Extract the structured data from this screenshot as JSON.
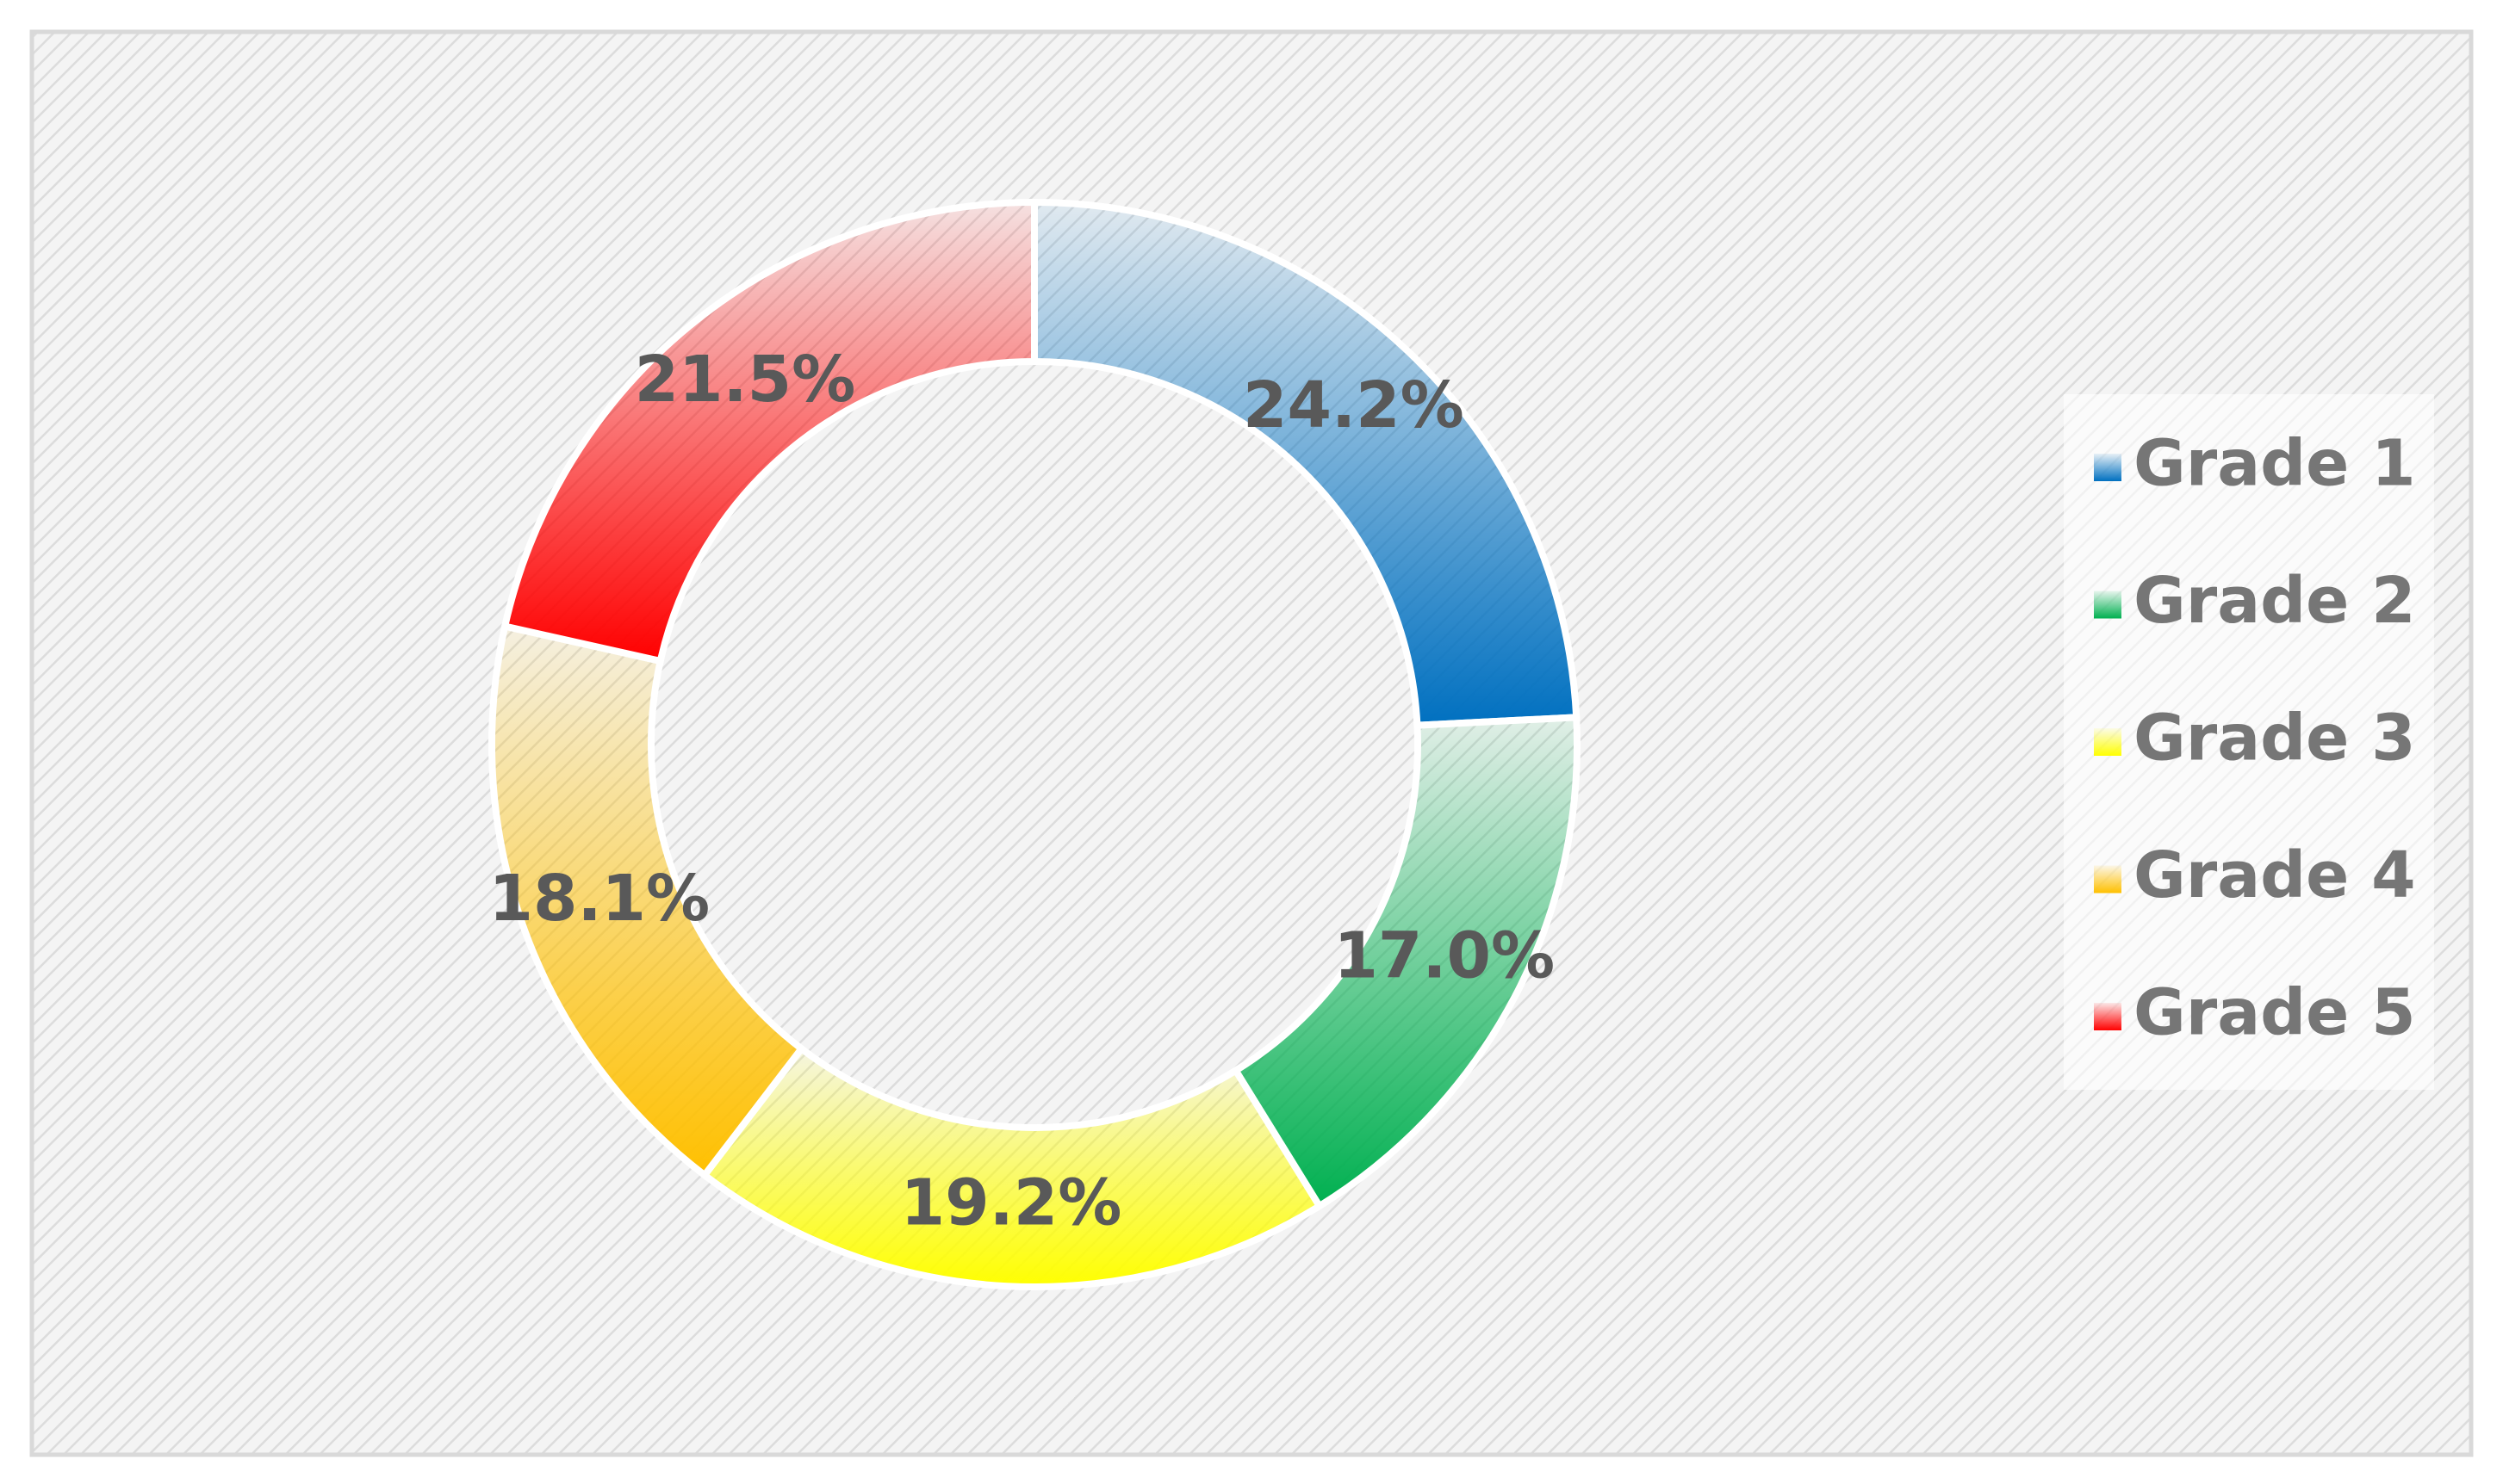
{
  "chart_data": {
    "type": "donut",
    "categories": [
      "Grade 1",
      "Grade 2",
      "Grade 3",
      "Grade 4",
      "Grade 5"
    ],
    "values": [
      24.2,
      17.0,
      19.2,
      18.1,
      21.5
    ],
    "value_labels": [
      "24.2%",
      "17.0%",
      "19.2%",
      "18.1%",
      "21.5%"
    ],
    "colors": [
      "#0070c0",
      "#00b050",
      "#ffff00",
      "#ffc000",
      "#ff0000"
    ],
    "legend": "right"
  }
}
